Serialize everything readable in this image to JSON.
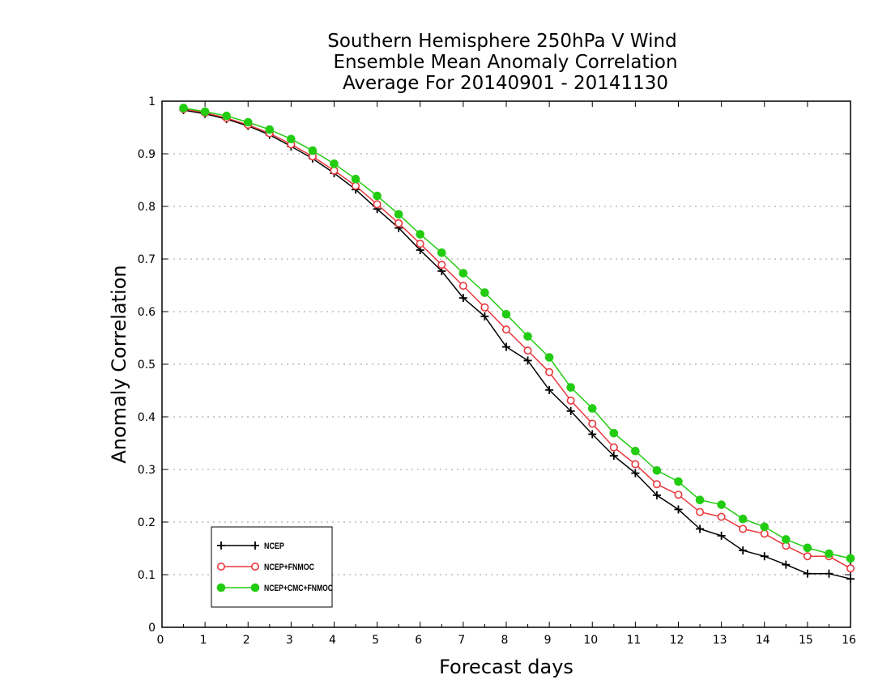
{
  "chart_data": {
    "type": "line",
    "title": [
      "Southern Hemisphere 250hPa V Wind",
      "Ensemble Mean Anomaly Correlation",
      "Average For 20140901 - 20141130"
    ],
    "xlabel": "Forecast days",
    "ylabel": "Anomaly Correlation",
    "xlim": [
      0,
      16
    ],
    "ylim": [
      0,
      1
    ],
    "x_ticks": [
      0,
      1,
      2,
      3,
      4,
      5,
      6,
      7,
      8,
      9,
      10,
      11,
      12,
      13,
      14,
      15,
      16
    ],
    "y_ticks": [
      0,
      0.1,
      0.2,
      0.3,
      0.4,
      0.5,
      0.6,
      0.7,
      0.8,
      0.9,
      1
    ],
    "y_tick_labels": [
      "0",
      "0.1",
      "0.2",
      "0.3",
      "0.4",
      "0.5",
      "0.6",
      "0.7",
      "0.8",
      "0.9",
      "1"
    ],
    "x_tick_labels": [
      "0",
      "1",
      "2",
      "3",
      "4",
      "5",
      "6",
      "7",
      "8",
      "9",
      "10",
      "11",
      "12",
      "13",
      "14",
      "15",
      "16"
    ],
    "grid": "horizontal-dotted",
    "legend_position": "bottom-left",
    "x": [
      0.5,
      1,
      1.5,
      2,
      2.5,
      3,
      3.5,
      4,
      4.5,
      5,
      5.5,
      6,
      6.5,
      7,
      7.5,
      8,
      8.5,
      9,
      9.5,
      10,
      10.5,
      11,
      11.5,
      12,
      12.5,
      13,
      13.5,
      14,
      14.5,
      15,
      15.5,
      16
    ],
    "series": [
      {
        "name": "NCEP",
        "color": "#000000",
        "marker": "plus",
        "values": [
          0.983,
          0.976,
          0.966,
          0.953,
          0.936,
          0.914,
          0.891,
          0.863,
          0.832,
          0.795,
          0.759,
          0.717,
          0.677,
          0.626,
          0.591,
          0.533,
          0.507,
          0.451,
          0.411,
          0.367,
          0.326,
          0.293,
          0.251,
          0.224,
          0.187,
          0.174,
          0.146,
          0.135,
          0.119,
          0.102,
          0.102,
          0.092
        ]
      },
      {
        "name": "NCEP+FNMOC",
        "color": "#e8383d",
        "marker": "open-circle",
        "values": [
          0.985,
          0.978,
          0.968,
          0.955,
          0.939,
          0.918,
          0.895,
          0.868,
          0.839,
          0.804,
          0.768,
          0.729,
          0.689,
          0.649,
          0.608,
          0.566,
          0.526,
          0.485,
          0.431,
          0.387,
          0.342,
          0.31,
          0.272,
          0.252,
          0.219,
          0.21,
          0.187,
          0.178,
          0.155,
          0.135,
          0.135,
          0.112
        ]
      },
      {
        "name": "NCEP+CMC+FNMOC",
        "color": "#22cc11",
        "marker": "filled-circle",
        "values": [
          0.987,
          0.98,
          0.972,
          0.96,
          0.946,
          0.928,
          0.906,
          0.881,
          0.852,
          0.82,
          0.785,
          0.747,
          0.712,
          0.673,
          0.636,
          0.595,
          0.553,
          0.513,
          0.456,
          0.416,
          0.369,
          0.335,
          0.298,
          0.277,
          0.242,
          0.233,
          0.206,
          0.191,
          0.167,
          0.151,
          0.14,
          0.131
        ]
      }
    ]
  }
}
